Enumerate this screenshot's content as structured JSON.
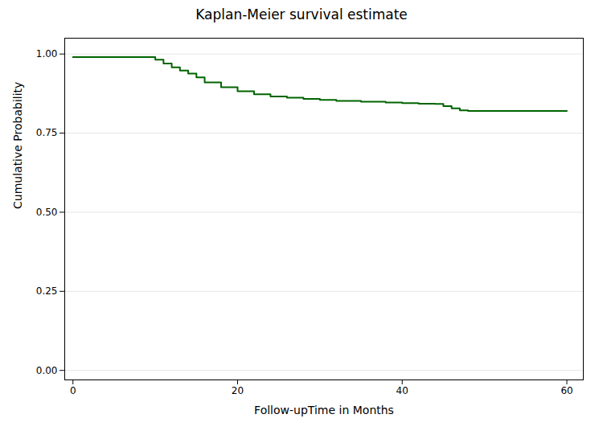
{
  "chart_data": {
    "type": "line",
    "title": "Kaplan-Meier survival estimate",
    "xlabel": "Follow-upTime in Months",
    "ylabel": "Cumulative Probability",
    "color": "#006400",
    "x": [
      0,
      10,
      10,
      11,
      11,
      12,
      12,
      13,
      13,
      14,
      14,
      15,
      15,
      16,
      16,
      18,
      18,
      20,
      20,
      22,
      22,
      24,
      24,
      26,
      26,
      28,
      28,
      30,
      30,
      32,
      32,
      35,
      35,
      38,
      38,
      40,
      40,
      42,
      42,
      44,
      44,
      45,
      45,
      46,
      46,
      47,
      47,
      48,
      48,
      60
    ],
    "values": [
      0.99,
      0.99,
      0.982,
      0.982,
      0.97,
      0.97,
      0.958,
      0.958,
      0.948,
      0.948,
      0.938,
      0.938,
      0.926,
      0.926,
      0.91,
      0.91,
      0.895,
      0.895,
      0.882,
      0.882,
      0.873,
      0.873,
      0.866,
      0.866,
      0.862,
      0.862,
      0.858,
      0.858,
      0.855,
      0.855,
      0.852,
      0.852,
      0.849,
      0.849,
      0.847,
      0.847,
      0.845,
      0.845,
      0.843,
      0.843,
      0.842,
      0.842,
      0.835,
      0.835,
      0.828,
      0.828,
      0.822,
      0.822,
      0.82,
      0.82
    ],
    "xlim": [
      -1,
      62
    ],
    "ylim": [
      -0.03,
      1.05
    ],
    "xticks": [
      0,
      20,
      40,
      60
    ],
    "yticks": [
      {
        "value": 0.0,
        "label": "0.00"
      },
      {
        "value": 0.25,
        "label": "0.25"
      },
      {
        "value": 0.5,
        "label": "0.50"
      },
      {
        "value": 0.75,
        "label": "0.75"
      },
      {
        "value": 1.0,
        "label": "1.00"
      }
    ],
    "grid": true
  }
}
